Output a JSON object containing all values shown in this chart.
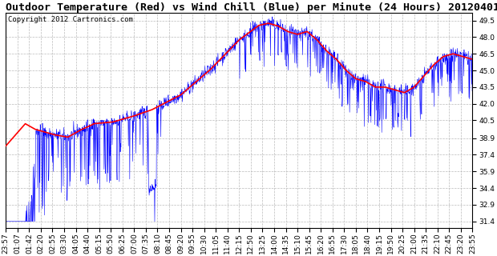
{
  "title": "Outdoor Temperature (Red) vs Wind Chill (Blue) per Minute (24 Hours) 20120401",
  "copyright_text": "Copyright 2012 Cartronics.com",
  "yticks": [
    31.4,
    32.9,
    34.4,
    35.9,
    37.4,
    38.9,
    40.5,
    42.0,
    43.5,
    45.0,
    46.5,
    48.0,
    49.5
  ],
  "ymin": 30.8,
  "ymax": 50.2,
  "xtick_labels": [
    "23:57",
    "01:07",
    "01:42",
    "02:20",
    "02:55",
    "03:30",
    "04:05",
    "04:40",
    "05:15",
    "05:50",
    "06:25",
    "07:00",
    "07:35",
    "08:10",
    "08:45",
    "09:20",
    "09:55",
    "10:30",
    "11:05",
    "11:40",
    "12:15",
    "12:50",
    "13:25",
    "14:00",
    "14:35",
    "15:10",
    "15:45",
    "16:20",
    "16:55",
    "17:30",
    "18:05",
    "18:40",
    "19:15",
    "19:50",
    "20:25",
    "21:00",
    "21:35",
    "22:10",
    "22:45",
    "23:20",
    "23:55"
  ],
  "red_color": "#FF0000",
  "blue_color": "#0000FF",
  "bg_color": "#FFFFFF",
  "grid_color": "#BBBBBB",
  "title_fontsize": 9.5,
  "tick_fontsize": 6.5,
  "copyright_fontsize": 6.5
}
